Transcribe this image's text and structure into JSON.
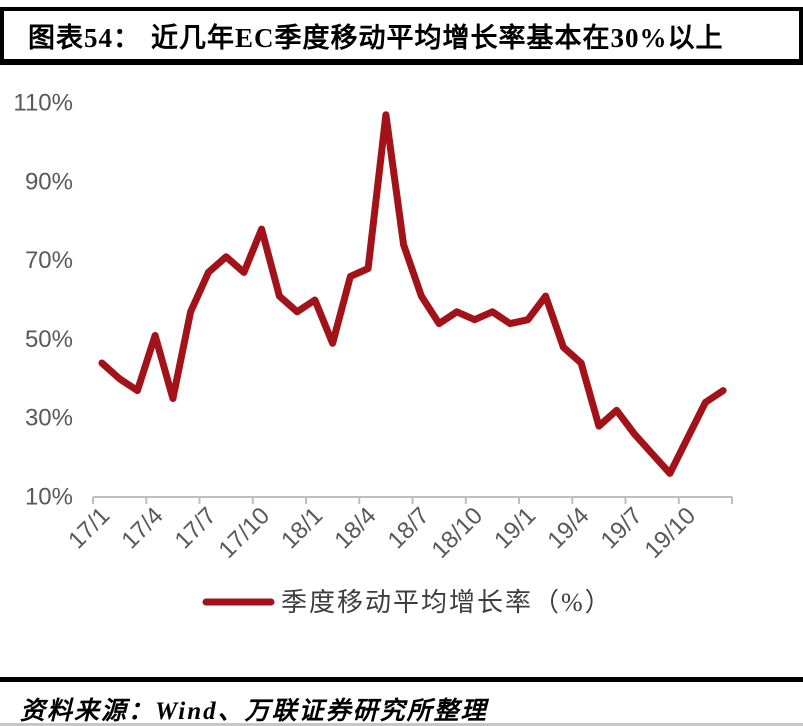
{
  "header": {
    "figure_label": "图表54：",
    "title": "近几年EC季度移动平均增长率基本在30%以上"
  },
  "chart_data": {
    "type": "line",
    "title": "近几年EC季度移动平均增长率基本在30%以上",
    "xlabel": "",
    "ylabel": "",
    "ylim": [
      10,
      110
    ],
    "grid": false,
    "legend_position": "bottom",
    "line_color": "#A21218",
    "axis_color": "#BFBFBF",
    "tick_label_color": "#595959",
    "ytick_labels": [
      "110%",
      "90%",
      "70%",
      "50%",
      "30%",
      "10%"
    ],
    "xtick_labels": [
      "17/1",
      "17/4",
      "17/7",
      "17/10",
      "18/1",
      "18/4",
      "18/7",
      "18/10",
      "19/1",
      "19/4",
      "19/7",
      "19/10"
    ],
    "x": [
      "17/1",
      "17/2",
      "17/3",
      "17/4",
      "17/5",
      "17/6",
      "17/7",
      "17/8",
      "17/9",
      "17/10",
      "17/11",
      "17/12",
      "18/1",
      "18/2",
      "18/3",
      "18/4",
      "18/5",
      "18/6",
      "18/7",
      "18/8",
      "18/9",
      "18/10",
      "18/11",
      "18/12",
      "19/1",
      "19/2",
      "19/3",
      "19/4",
      "19/5",
      "19/6",
      "19/7",
      "19/8",
      "19/9",
      "19/10",
      "19/11",
      "19/12"
    ],
    "series": [
      {
        "name": "季度移动平均增长率（%）",
        "values": [
          44,
          40,
          37,
          51,
          35,
          57,
          67,
          71,
          67,
          78,
          61,
          57,
          60,
          49,
          66,
          68,
          107,
          74,
          61,
          54,
          57,
          55,
          57,
          54,
          55,
          61,
          48,
          44,
          28,
          32,
          26,
          21,
          16,
          25,
          34,
          37
        ]
      }
    ],
    "legend": [
      "季度移动平均增长率（%）"
    ]
  },
  "footer": {
    "source": "资料来源：Wind、万联证券研究所整理"
  }
}
